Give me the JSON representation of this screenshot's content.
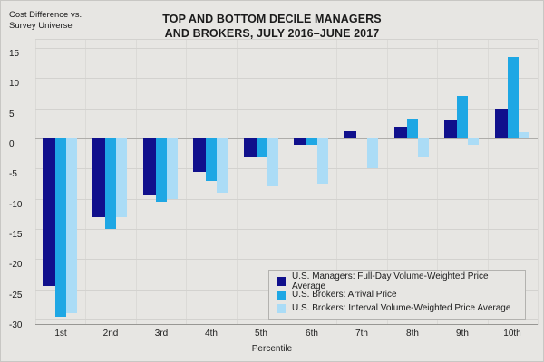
{
  "header": {
    "y_note_line1": "Cost Difference vs.",
    "y_note_line2": "Survey Universe",
    "title_line1": "TOP AND BOTTOM DECILE MANAGERS",
    "title_line2": "AND BROKERS, JULY 2016–JUNE 2017"
  },
  "chart_data": {
    "type": "bar",
    "title": "TOP AND BOTTOM DECILE MANAGERS AND BROKERS, JULY 2016–JUNE 2017",
    "ylabel": "Cost Difference vs. Survey Universe",
    "xlabel": "Percentile",
    "categories": [
      "1st",
      "2nd",
      "3rd",
      "4th",
      "5th",
      "6th",
      "7th",
      "8th",
      "9th",
      "10th"
    ],
    "series": [
      {
        "name": "U.S. Managers: Full-Day Volume-Weighted Price Average",
        "color": "#10108c",
        "values": [
          -24.5,
          -13,
          -9.5,
          -5.5,
          -3,
          -1,
          1.2,
          2,
          3,
          5
        ]
      },
      {
        "name": "U.S. Brokers: Arrival Price",
        "color": "#1ea7e4",
        "values": [
          -29.5,
          -15,
          -10.5,
          -7,
          -3,
          -1,
          0,
          3.2,
          7,
          13.5
        ]
      },
      {
        "name": "U.S. Brokers: Interval Volume-Weighted Price Average",
        "color": "#abdcf6",
        "values": [
          -29,
          -13,
          -10,
          -9,
          -8,
          -7.5,
          -5,
          -3,
          -1,
          1
        ]
      }
    ],
    "y_ticks": [
      15,
      10,
      5,
      0,
      -5,
      -10,
      -15,
      -20,
      -25,
      -30
    ],
    "ylim": [
      -30.9,
      16.35
    ],
    "grid": true,
    "legend_position": "bottom-right",
    "colors": {
      "background": "#e7e6e3",
      "gridline": "#d3d2cf",
      "zero_line": "#aeadaa",
      "axis_line": "#989794",
      "text": "#1b1b1b"
    }
  }
}
